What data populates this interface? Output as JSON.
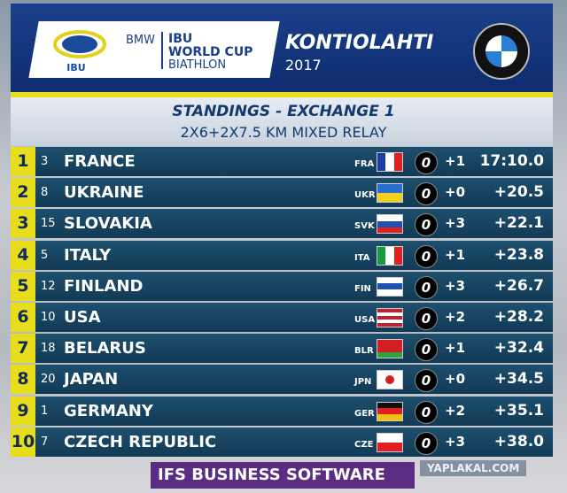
{
  "header": {
    "logo": "IBU",
    "sponsor": "BMW",
    "event_line1": "IBU",
    "event_line2": "WORLD CUP",
    "event_line3": "BIATHLON",
    "venue": "KONTIOLAHTI",
    "year": "2017"
  },
  "panel": {
    "title": "STANDINGS - EXCHANGE 1",
    "subtitle": "2X6+2X7.5 KM MIXED RELAY"
  },
  "table": {
    "rows": [
      [
        1,
        3,
        "FRANCE",
        "FRA",
        "0",
        "+1",
        "17:10.0"
      ],
      [
        2,
        8,
        "UKRAINE",
        "UKR",
        "0",
        "+0",
        "+20.5"
      ],
      [
        3,
        15,
        "SLOVAKIA",
        "SVK",
        "0",
        "+3",
        "+22.1"
      ],
      [
        4,
        5,
        "ITALY",
        "ITA",
        "0",
        "+1",
        "+23.8"
      ],
      [
        5,
        12,
        "FINLAND",
        "FIN",
        "0",
        "+3",
        "+26.7"
      ],
      [
        6,
        10,
        "USA",
        "USA",
        "0",
        "+2",
        "+28.2"
      ],
      [
        7,
        18,
        "BELARUS",
        "BLR",
        "0",
        "+1",
        "+32.4"
      ],
      [
        8,
        20,
        "JAPAN",
        "JPN",
        "0",
        "+0",
        "+34.5"
      ],
      [
        9,
        1,
        "GERMANY",
        "GER",
        "0",
        "+2",
        "+35.1"
      ],
      [
        10,
        7,
        "CZECH REPUBLIC",
        "CZE",
        "0",
        "+3",
        "+38.0"
      ]
    ]
  },
  "footer": {
    "sponsor": "IFS BUSINESS SOFTWARE",
    "watermark": "YAPLAKAL.COM"
  }
}
